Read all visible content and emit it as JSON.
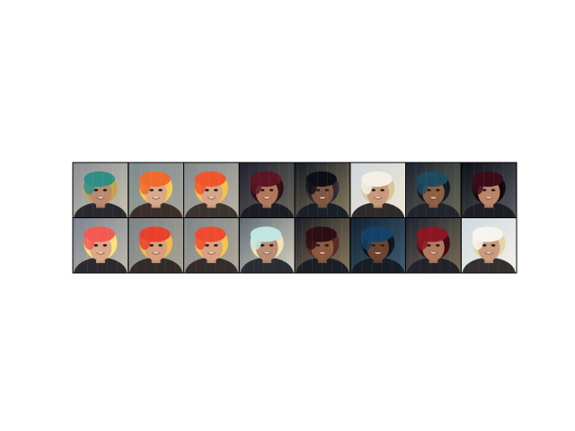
{
  "figure": {
    "background": "#ffffff",
    "frame_color": "#000000",
    "rows": 2,
    "columns": 8
  },
  "samples": [
    [
      {
        "bg": "#8a8f94",
        "bg2": "#c9c2b0",
        "hair": "#2f8f86",
        "hair2": "#c7a14a",
        "skin": "#b98a6e",
        "shirt": "#2a2a2e"
      },
      {
        "bg": "#7d8a8c",
        "bg2": "#a8a59c",
        "hair": "#f06a2c",
        "hair2": "#f7c950",
        "skin": "#d9a98a",
        "shirt": "#3a2f2a"
      },
      {
        "bg": "#80878a",
        "bg2": "#b9b3a5",
        "hair": "#f0552a",
        "hair2": "#f2c24e",
        "skin": "#d6a487",
        "shirt": "#3b3330"
      },
      {
        "bg": "#1c1f2e",
        "bg2": "#6d6a5e",
        "hair": "#5a1622",
        "hair2": "#2b0f17",
        "skin": "#b0785a",
        "shirt": "#1c1c24"
      },
      {
        "bg": "#141a22",
        "bg2": "#8a7f62",
        "hair": "#0e0f16",
        "hair2": "#2e2a38",
        "skin": "#7f563f",
        "shirt": "#1b1f28"
      },
      {
        "bg": "#cfd6da",
        "bg2": "#efe6d6",
        "hair": "#f4f0e6",
        "hair2": "#d8c59a",
        "skin": "#c8997c",
        "shirt": "#2f2a2a"
      },
      {
        "bg": "#1a2230",
        "bg2": "#6c6a55",
        "hair": "#1e4a5e",
        "hair2": "#0f1a24",
        "skin": "#8e5f42",
        "shirt": "#20242c"
      },
      {
        "bg": "#0b0d14",
        "bg2": "#5a5f66",
        "hair": "#3a0d18",
        "hair2": "#100409",
        "skin": "#b98468",
        "shirt": "#1d1d24"
      }
    ],
    [
      {
        "bg": "#7b8390",
        "bg2": "#c4bcae",
        "hair": "#f25a52",
        "hair2": "#fbe27a",
        "skin": "#dba98a",
        "shirt": "#2c2a30"
      },
      {
        "bg": "#7a8286",
        "bg2": "#aca596",
        "hair": "#e8402c",
        "hair2": "#f5b84a",
        "skin": "#d59f80",
        "shirt": "#332b2a"
      },
      {
        "bg": "#7c8488",
        "bg2": "#b3ab9a",
        "hair": "#ee4b30",
        "hair2": "#f7c44c",
        "skin": "#d8a283",
        "shirt": "#342d2c"
      },
      {
        "bg": "#5e6a74",
        "bg2": "#d9d2c2",
        "hair": "#bfe6e2",
        "hair2": "#f2e2b6",
        "skin": "#b98d72",
        "shirt": "#2a2d33"
      },
      {
        "bg": "#1a1c26",
        "bg2": "#8c7c5c",
        "hair": "#2a0e14",
        "hair2": "#5a2a24",
        "skin": "#8a5a3e",
        "shirt": "#1c1e26"
      },
      {
        "bg": "#13202e",
        "bg2": "#3f5e74",
        "hair": "#14406a",
        "hair2": "#0a1420",
        "skin": "#6a442e",
        "shirt": "#181c24"
      },
      {
        "bg": "#1e2230",
        "bg2": "#7a6e58",
        "hair": "#8a1622",
        "hair2": "#3e0b14",
        "skin": "#b07a5c",
        "shirt": "#23222a"
      },
      {
        "bg": "#cdd8de",
        "bg2": "#f4f2ea",
        "hair": "#f7f4ee",
        "hair2": "#e6d3a8",
        "skin": "#c99c80",
        "shirt": "#35302f"
      }
    ]
  ]
}
